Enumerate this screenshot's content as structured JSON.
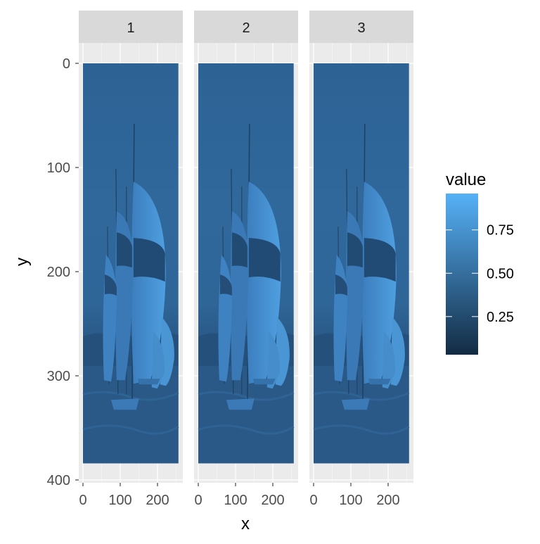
{
  "chart_data": {
    "type": "heatmap",
    "facets": [
      "1",
      "2",
      "3"
    ],
    "xlabel": "x",
    "ylabel": "y",
    "x_ticks": [
      0,
      100,
      200
    ],
    "y_ticks": [
      0,
      100,
      200,
      300,
      400
    ],
    "xlim": [
      0,
      256
    ],
    "ylim": [
      0,
      384
    ],
    "y_reversed": true,
    "fill_range": [
      0.03,
      0.96
    ],
    "legend": {
      "title": "value",
      "breaks": [
        0.25,
        0.5,
        0.75
      ],
      "labels": [
        "0.25",
        "0.50",
        "0.75"
      ],
      "low_color": "#132B43",
      "high_color": "#56B1F7",
      "position": "right"
    },
    "panel_background": "#EBEBEB",
    "strip_background": "#D9D9D9",
    "image_description": "grayscale photo of sailboats with spinnakers on water, mapped to a blue continuous scale, repeated in each facet"
  }
}
